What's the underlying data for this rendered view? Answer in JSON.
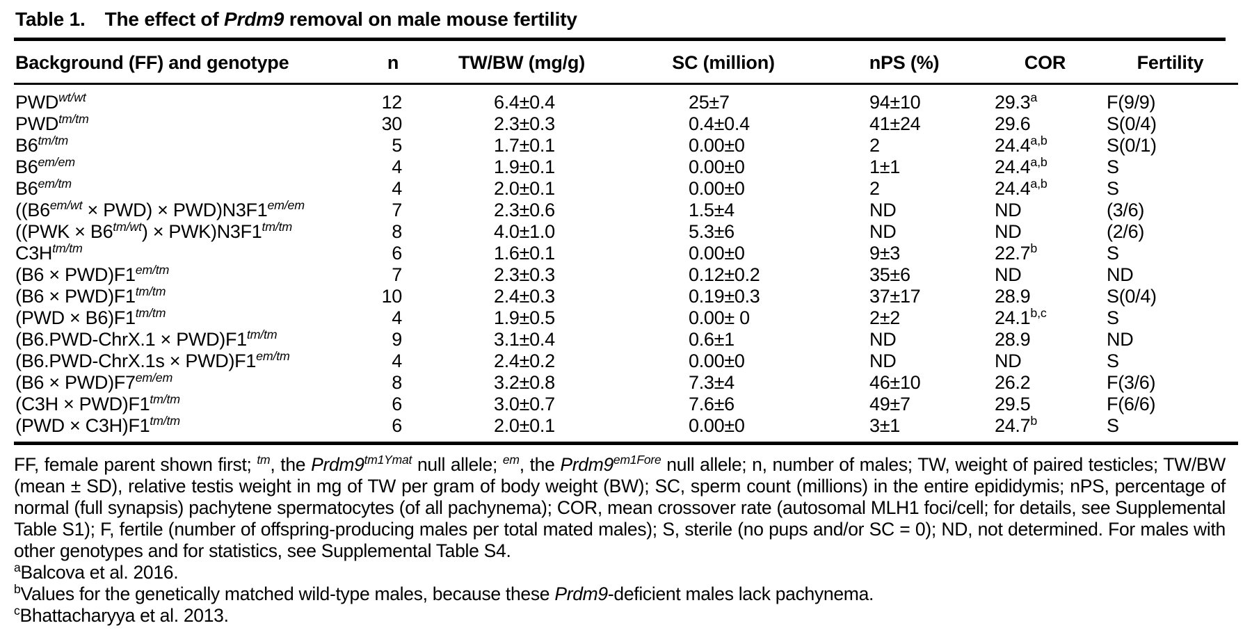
{
  "colors": {
    "text": "#000000",
    "background": "#ffffff",
    "rule": "#000000"
  },
  "title": {
    "label": "Table 1.",
    "pre": "The effect of ",
    "gene": "Prdm9",
    "post": " removal on male mouse fertility"
  },
  "table": {
    "headers": [
      "Background (FF) and genotype",
      "n",
      "TW/BW (mg/g)",
      "SC (million)",
      "nPS (%)",
      "COR",
      "Fertility"
    ],
    "rows": [
      {
        "genotype": [
          [
            "t",
            "PWD"
          ],
          [
            "s",
            "wt/wt"
          ]
        ],
        "n": "12",
        "tw_bw": "6.4±0.4",
        "sc": "25±7",
        "nps": "94±10",
        "cor": [
          [
            "t",
            "29.3"
          ],
          [
            "u",
            "a"
          ]
        ],
        "fertility": "F(9/9)"
      },
      {
        "genotype": [
          [
            "t",
            "PWD"
          ],
          [
            "s",
            "tm/tm"
          ]
        ],
        "n": "30",
        "tw_bw": "2.3±0.3",
        "sc": "0.4±0.4",
        "nps": "41±24",
        "cor": [
          [
            "t",
            "29.6"
          ]
        ],
        "fertility": "S(0/4)"
      },
      {
        "genotype": [
          [
            "t",
            "B6"
          ],
          [
            "s",
            "tm/tm"
          ]
        ],
        "n": "5",
        "tw_bw": "1.7±0.1",
        "sc": "0.00±0",
        "nps": "2",
        "cor": [
          [
            "t",
            "24.4"
          ],
          [
            "u",
            "a,b"
          ]
        ],
        "fertility": "S(0/1)"
      },
      {
        "genotype": [
          [
            "t",
            "B6"
          ],
          [
            "s",
            "em/em"
          ]
        ],
        "n": "4",
        "tw_bw": "1.9±0.1",
        "sc": "0.00±0",
        "nps": "1±1",
        "cor": [
          [
            "t",
            "24.4"
          ],
          [
            "u",
            "a,b"
          ]
        ],
        "fertility": "S"
      },
      {
        "genotype": [
          [
            "t",
            "B6"
          ],
          [
            "s",
            "em/tm"
          ]
        ],
        "n": "4",
        "tw_bw": "2.0±0.1",
        "sc": "0.00±0",
        "nps": "2",
        "cor": [
          [
            "t",
            "24.4"
          ],
          [
            "u",
            "a,b"
          ]
        ],
        "fertility": "S"
      },
      {
        "genotype": [
          [
            "t",
            "((B6"
          ],
          [
            "s",
            "em/wt"
          ],
          [
            "t",
            " × PWD) × PWD)N3F1"
          ],
          [
            "s",
            "em/em"
          ]
        ],
        "n": "7",
        "tw_bw": "2.3±0.6",
        "sc": "1.5±4",
        "nps": "ND",
        "cor": [
          [
            "t",
            "ND"
          ]
        ],
        "fertility": "(3/6)"
      },
      {
        "genotype": [
          [
            "t",
            "((PWK × B6"
          ],
          [
            "s",
            "tm/wt"
          ],
          [
            "t",
            ") × PWK)N3F1"
          ],
          [
            "s",
            "tm/tm"
          ]
        ],
        "n": "8",
        "tw_bw": "4.0±1.0",
        "sc": "5.3±6",
        "nps": "ND",
        "cor": [
          [
            "t",
            "ND"
          ]
        ],
        "fertility": "(2/6)"
      },
      {
        "genotype": [
          [
            "t",
            "C3H"
          ],
          [
            "s",
            "tm/tm"
          ]
        ],
        "n": "6",
        "tw_bw": "1.6±0.1",
        "sc": "0.00±0",
        "nps": "9±3",
        "cor": [
          [
            "t",
            "22.7"
          ],
          [
            "u",
            "b"
          ]
        ],
        "fertility": "S"
      },
      {
        "genotype": [
          [
            "t",
            "(B6 × PWD)F1"
          ],
          [
            "s",
            "em/tm"
          ]
        ],
        "n": "7",
        "tw_bw": "2.3±0.3",
        "sc": "0.12±0.2",
        "nps": "35±6",
        "cor": [
          [
            "t",
            "ND"
          ]
        ],
        "fertility": "ND"
      },
      {
        "genotype": [
          [
            "t",
            "(B6 × PWD)F1"
          ],
          [
            "s",
            "tm/tm"
          ]
        ],
        "n": "10",
        "tw_bw": "2.4±0.3",
        "sc": "0.19±0.3",
        "nps": "37±17",
        "cor": [
          [
            "t",
            "28.9"
          ]
        ],
        "fertility": "S(0/4)"
      },
      {
        "genotype": [
          [
            "t",
            "(PWD × B6)F1"
          ],
          [
            "s",
            "tm/tm"
          ]
        ],
        "n": "4",
        "tw_bw": "1.9±0.5",
        "sc": "0.00± 0",
        "nps": "2±2",
        "cor": [
          [
            "t",
            "24.1"
          ],
          [
            "u",
            "b,c"
          ]
        ],
        "fertility": "S"
      },
      {
        "genotype": [
          [
            "t",
            "(B6.PWD-ChrX.1 × PWD)F1"
          ],
          [
            "s",
            "tm/tm"
          ]
        ],
        "n": "9",
        "tw_bw": "3.1±0.4",
        "sc": "0.6±1",
        "nps": "ND",
        "cor": [
          [
            "t",
            "28.9"
          ]
        ],
        "fertility": "ND"
      },
      {
        "genotype": [
          [
            "t",
            "(B6.PWD-ChrX.1s × PWD)F1"
          ],
          [
            "s",
            "em/tm"
          ]
        ],
        "n": "4",
        "tw_bw": "2.4±0.2",
        "sc": "0.00±0",
        "nps": "ND",
        "cor": [
          [
            "t",
            "ND"
          ]
        ],
        "fertility": "S"
      },
      {
        "genotype": [
          [
            "t",
            "(B6 × PWD)F7"
          ],
          [
            "s",
            "em/em"
          ]
        ],
        "n": "8",
        "tw_bw": "3.2±0.8",
        "sc": "7.3±4",
        "nps": "46±10",
        "cor": [
          [
            "t",
            "26.2"
          ]
        ],
        "fertility": "F(3/6)"
      },
      {
        "genotype": [
          [
            "t",
            "(C3H × PWD)F1"
          ],
          [
            "s",
            "tm/tm"
          ]
        ],
        "n": "6",
        "tw_bw": "3.0±0.7",
        "sc": "7.6±6",
        "nps": "49±7",
        "cor": [
          [
            "t",
            "29.5"
          ]
        ],
        "fertility": "F(6/6)"
      },
      {
        "genotype": [
          [
            "t",
            "(PWD × C3H)F1"
          ],
          [
            "s",
            "tm/tm"
          ]
        ],
        "n": "6",
        "tw_bw": "2.0±0.1",
        "sc": "0.00±0",
        "nps": "3±1",
        "cor": [
          [
            "t",
            "24.7"
          ],
          [
            "u",
            "b"
          ]
        ],
        "fertility": "S"
      }
    ]
  },
  "footnotes": {
    "paragraph": [
      [
        "t",
        "FF, female parent shown first; "
      ],
      [
        "s",
        "tm"
      ],
      [
        "t",
        ", the "
      ],
      [
        "i",
        "Prdm9"
      ],
      [
        "s",
        "tm1Ymat"
      ],
      [
        "t",
        " null allele; "
      ],
      [
        "s",
        "em"
      ],
      [
        "t",
        ", the "
      ],
      [
        "i",
        "Prdm9"
      ],
      [
        "s",
        "em1Fore"
      ],
      [
        "t",
        " null allele; n, number of males; TW, weight of paired testicles; TW/BW (mean ± SD), relative testis weight in mg of TW per gram of body weight (BW); SC, sperm count (millions) in the entire epididymis; nPS, percentage of normal (full synapsis) pachytene spermatocytes (of all pachynema); COR, mean crossover rate (autosomal MLH1 foci/cell; for details, see Supplemental Table S1); F, fertile (number of offspring-producing males per total mated males); S, sterile (no pups and/or SC = 0); ND, not determined. For males with other genotypes and for statistics, see Supplemental Table S4."
      ]
    ],
    "notes": [
      {
        "marker": "a",
        "segments": [
          [
            "u",
            "a"
          ],
          [
            "t",
            "Balcova et al. 2016."
          ]
        ]
      },
      {
        "marker": "b",
        "segments": [
          [
            "u",
            "b"
          ],
          [
            "t",
            "Values for the genetically matched wild-type males, because these "
          ],
          [
            "i",
            "Prdm9"
          ],
          [
            "t",
            "-deficient males lack pachynema."
          ]
        ]
      },
      {
        "marker": "c",
        "segments": [
          [
            "u",
            "c"
          ],
          [
            "t",
            "Bhattacharyya et al. 2013."
          ]
        ]
      }
    ]
  }
}
